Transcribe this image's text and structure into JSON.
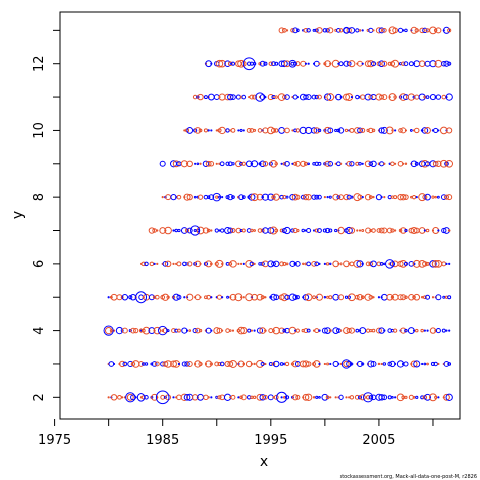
{
  "chart_data": {
    "type": "scatter",
    "xlabel": "x",
    "ylabel": "y",
    "xlim": [
      1975.5,
      2012.5
    ],
    "ylim": [
      1.35,
      13.55
    ],
    "xticks": [
      "1975",
      "1985",
      "1995",
      "2005"
    ],
    "yticks": [
      "2",
      "4",
      "6",
      "8",
      "10",
      "12"
    ],
    "grid": false,
    "marker": "open-circle",
    "size_encoding": "circle radius proportional to absolute residual",
    "colors": {
      "positive": "#0000ff",
      "negative": "#e6502a",
      "frame": "#000000"
    },
    "credit": "stockassessment.org, Mack-all-data-one-post-M, r2826",
    "residuals_note": "Point grid: one bubble per year x age",
    "points": [
      {
        "x": 1983,
        "y": 2,
        "r": 0.9
      },
      {
        "x": 1983,
        "y": 4,
        "r": -0.4
      },
      {
        "x": 1983,
        "y": 5,
        "r": 1.3
      },
      {
        "x": 1985,
        "y": 2,
        "r": 1.5
      },
      {
        "x": 1985,
        "y": 4,
        "r": 1.0
      },
      {
        "x": 1985,
        "y": 9,
        "r": 0.6
      },
      {
        "x": 1988,
        "y": 7,
        "r": 1.1
      },
      {
        "x": 1990,
        "y": 8,
        "r": 0.9
      },
      {
        "x": 1993,
        "y": 12,
        "r": 1.4
      },
      {
        "x": 1994,
        "y": 11,
        "r": 1.0
      },
      {
        "x": 1996,
        "y": 2,
        "r": 1.2
      },
      {
        "x": 1997,
        "y": 12,
        "r": 0.8
      },
      {
        "x": 2002,
        "y": 13,
        "r": 0.7
      },
      {
        "x": 2002,
        "y": 3,
        "r": 1.0
      },
      {
        "x": 2004,
        "y": 2,
        "r": 1.1
      },
      {
        "x": 2006,
        "y": 6,
        "r": 1.0
      },
      {
        "x": 1980,
        "y": 4,
        "r": 1.1
      },
      {
        "x": 1982,
        "y": 2,
        "r": 1.1
      }
    ]
  }
}
